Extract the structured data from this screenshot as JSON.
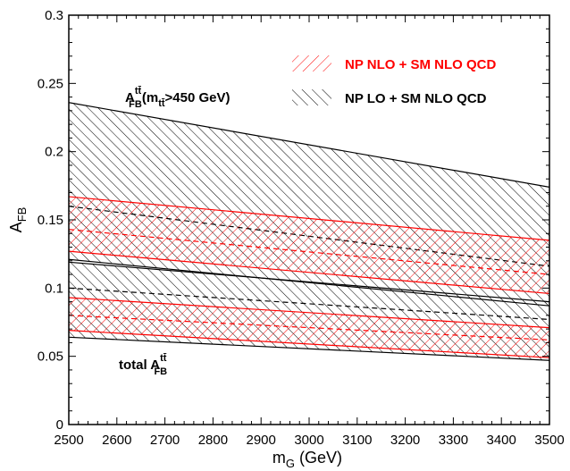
{
  "chart_data": {
    "type": "area",
    "x": [
      2500,
      3500
    ],
    "xlabel": "m",
    "xlabel_sub": "G",
    "xlabel_unit": " (GeV)",
    "ylabel": "A",
    "ylabel_sub": "FB",
    "xlim": [
      2500,
      3500
    ],
    "ylim": [
      0,
      0.3
    ],
    "xticks": [
      2500,
      2600,
      2700,
      2800,
      2900,
      3000,
      3100,
      3200,
      3300,
      3400,
      3500
    ],
    "yticks": [
      0,
      0.05,
      0.1,
      0.15,
      0.2,
      0.25,
      0.3
    ],
    "ytick_labels": [
      "0",
      "0.05",
      "0.1",
      "0.15",
      "0.2",
      "0.25",
      "0.3"
    ],
    "grid": false,
    "legend_position": "top-right",
    "legend": [
      {
        "label": "NP NLO + SM NLO QCD",
        "style": "red-hatch",
        "color": "#ff0000"
      },
      {
        "label": "NP LO + SM NLO QCD",
        "style": "black-hatch",
        "color": "#000000"
      }
    ],
    "annotations": {
      "upper": {
        "main": "A",
        "sub": "FB",
        "sup": "tt̄",
        "tail": "(m",
        "tail_sub": "tt̄",
        "tail_end": ">450 GeV)"
      },
      "lower": {
        "main": "total A",
        "sub": "FB",
        "sup": "tt̄"
      }
    },
    "series": [
      {
        "name": "NP LO + SM NLO QCD",
        "group": "mtt>450 GeV",
        "color": "#000000",
        "upper": [
          0.236,
          0.174
        ],
        "central": [
          0.16,
          0.116
        ],
        "lower": [
          0.121,
          0.087
        ]
      },
      {
        "name": "NP NLO + SM NLO QCD",
        "group": "mtt>450 GeV",
        "color": "#ff0000",
        "upper": [
          0.167,
          0.135
        ],
        "central": [
          0.143,
          0.11
        ],
        "lower": [
          0.127,
          0.096
        ]
      },
      {
        "name": "NP LO + SM NLO QCD",
        "group": "total",
        "color": "#000000",
        "upper": [
          0.119,
          0.09
        ],
        "central": [
          0.1,
          0.077
        ],
        "lower": [
          0.064,
          0.047
        ]
      },
      {
        "name": "NP NLO + SM NLO QCD",
        "group": "total",
        "color": "#ff0000",
        "upper": [
          0.093,
          0.071
        ],
        "central": [
          0.08,
          0.062
        ],
        "lower": [
          0.069,
          0.049
        ]
      }
    ]
  }
}
